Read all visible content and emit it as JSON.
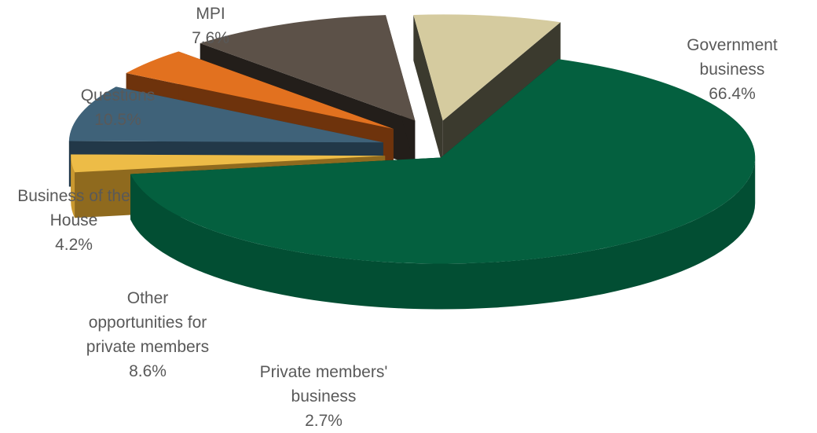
{
  "chart_data": {
    "type": "pie",
    "style": "3d-exploded",
    "title": "",
    "legend": "none",
    "slices": [
      {
        "label_lines": [
          "Government",
          "business"
        ],
        "percent_label": "66.4%",
        "value": 66.4,
        "color": "#04603F",
        "side_color": "#024E33",
        "dark_color": "#012A1C"
      },
      {
        "label_lines": [
          "Private members'",
          "business"
        ],
        "percent_label": "2.7%",
        "value": 2.7,
        "color": "#EDBC47",
        "side_color": "#C9982F",
        "dark_color": "#8F6A1E"
      },
      {
        "label_lines": [
          "Other",
          "opportunities for",
          "private members"
        ],
        "percent_label": "8.6%",
        "value": 8.6,
        "color": "#3F6279",
        "side_color": "#33516A",
        "dark_color": "#223848"
      },
      {
        "label_lines": [
          "Business of the",
          "House"
        ],
        "percent_label": "4.2%",
        "value": 4.2,
        "color": "#E2711F",
        "side_color": "#B85718",
        "dark_color": "#6E330C"
      },
      {
        "label_lines": [
          "Questions"
        ],
        "percent_label": "10.5%",
        "value": 10.5,
        "color": "#5C5148",
        "side_color": "#4A4139",
        "dark_color": "#231E1A"
      },
      {
        "label_lines": [
          "MPI"
        ],
        "percent_label": "7.6%",
        "value": 7.6,
        "color": "#D5CB9F",
        "side_color": "#575646",
        "dark_color": "#3B3A2E"
      }
    ]
  }
}
